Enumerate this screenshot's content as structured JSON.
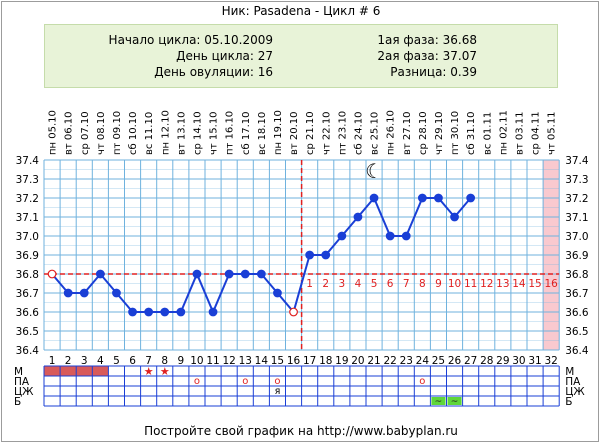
{
  "title": "Ник: Pasadena - Цикл # 6",
  "info": {
    "cycle_start": "Начало цикла: 05.10.2009",
    "cycle_day": "День цикла: 27",
    "ovulation_day": "День овуляции: 16",
    "phase1": "1ая фаза: 36.68",
    "phase2": "2ая фаза: 37.07",
    "difference": "Разница: 0.39"
  },
  "footer": "Постройте свой график на http://www.babyplan.ru",
  "colors": {
    "grid": "#6fb2de",
    "line": "#1a3fd6",
    "marker": "#e02020",
    "band": "#f9c9cf",
    "menses": "#d85a5a",
    "green": "#5fd63a"
  },
  "chart_data": {
    "type": "line",
    "x": [
      1,
      2,
      3,
      4,
      5,
      6,
      7,
      8,
      9,
      10,
      11,
      12,
      13,
      14,
      15,
      16,
      17,
      18,
      19,
      20,
      21,
      22,
      23,
      24,
      25,
      26,
      27
    ],
    "values": [
      36.8,
      36.7,
      36.7,
      36.8,
      36.7,
      36.6,
      36.6,
      36.6,
      36.6,
      36.8,
      36.6,
      36.8,
      36.8,
      36.8,
      36.7,
      36.6,
      36.9,
      36.9,
      37.0,
      37.1,
      37.2,
      37.0,
      37.0,
      37.2,
      37.2,
      37.1,
      37.2
    ],
    "ylim": [
      36.4,
      37.4
    ],
    "y_ticks": [
      "37.4",
      "37.3",
      "37.2",
      "37.1",
      "37.0",
      "36.9",
      "36.8",
      "36.7",
      "36.6",
      "36.5",
      "36.4"
    ],
    "x_day_labels": [
      "1",
      "2",
      "3",
      "4",
      "5",
      "6",
      "7",
      "8",
      "9",
      "10",
      "11",
      "12",
      "13",
      "14",
      "15",
      "16",
      "17",
      "18",
      "19",
      "20",
      "21",
      "22",
      "23",
      "24",
      "25",
      "26",
      "27",
      "28",
      "29",
      "30",
      "31",
      "32"
    ],
    "date_labels": [
      "пн 05.10",
      "вт 06.10",
      "ср 07.10",
      "чт 08.10",
      "пт 09.10",
      "сб 10.10",
      "вс 11.10",
      "пн 12.10",
      "вт 13.10",
      "ср 14.10",
      "чт 15.10",
      "пт 16.10",
      "сб 17.10",
      "вс 18.10",
      "пн 19.10",
      "вт 20.10",
      "ср 21.10",
      "чт 22.10",
      "пт 23.10",
      "сб 24.10",
      "вс 25.10",
      "пн 26.10",
      "вт 27.10",
      "ср 28.10",
      "чт 29.10",
      "пт 30.10",
      "сб 31.10",
      "вс 01.11",
      "пн 02.11",
      "вт 03.11",
      "ср 04.11",
      "чт 05.11"
    ],
    "coverline": 36.8,
    "ovulation_day": 16,
    "highlight_day": 32,
    "luteal_numbers": [
      "1",
      "2",
      "3",
      "4",
      "5",
      "6",
      "7",
      "8",
      "9",
      "10",
      "11",
      "12",
      "13",
      "14",
      "15",
      "16"
    ],
    "luteal_start_day": 17,
    "moon_day": 21,
    "moon_symbol": "☾",
    "grid": true
  },
  "bottom_rows": {
    "labels": [
      "М",
      "ПА",
      "ЦЖ",
      "Б"
    ],
    "menses_days": [
      1,
      2,
      3,
      4
    ],
    "star_days": [
      7,
      8
    ],
    "star_symbol": "★",
    "circle_days": [
      10,
      13,
      15,
      24
    ],
    "circle_symbol": "o",
    "cz_marks": [
      {
        "day": 15,
        "text": "я"
      }
    ],
    "b_days": [
      25,
      26
    ],
    "b_symbol": "~"
  }
}
